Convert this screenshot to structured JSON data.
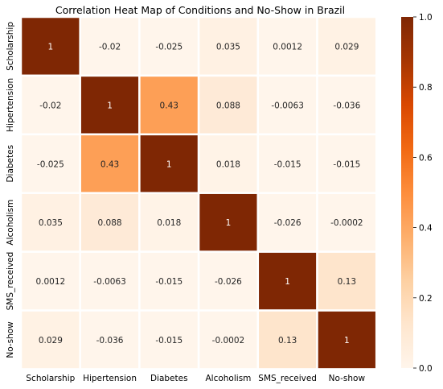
{
  "chart_data": {
    "type": "heatmap",
    "title": "Correlation Heat Map of Conditions and No-Show in Brazil",
    "x_categories": [
      "Scholarship",
      "Hipertension",
      "Diabetes",
      "Alcoholism",
      "SMS_received",
      "No-show"
    ],
    "y_categories": [
      "Scholarship",
      "Hipertension",
      "Diabetes",
      "Alcoholism",
      "SMS_received",
      "No-show"
    ],
    "matrix": [
      [
        1,
        -0.02,
        -0.025,
        0.035,
        0.0012,
        0.029
      ],
      [
        -0.02,
        1,
        0.43,
        0.088,
        -0.0063,
        -0.036
      ],
      [
        -0.025,
        0.43,
        1,
        0.018,
        -0.015,
        -0.015
      ],
      [
        0.035,
        0.088,
        0.018,
        1,
        -0.026,
        -0.0002
      ],
      [
        0.0012,
        -0.0063,
        -0.015,
        -0.026,
        1,
        0.13
      ],
      [
        0.029,
        -0.036,
        -0.015,
        -0.0002,
        0.13,
        1
      ]
    ],
    "labels": [
      [
        "1",
        "-0.02",
        "-0.025",
        "0.035",
        "0.0012",
        "0.029"
      ],
      [
        "-0.02",
        "1",
        "0.43",
        "0.088",
        "-0.0063",
        "-0.036"
      ],
      [
        "-0.025",
        "0.43",
        "1",
        "0.018",
        "-0.015",
        "-0.015"
      ],
      [
        "0.035",
        "0.088",
        "0.018",
        "1",
        "-0.026",
        "-0.0002"
      ],
      [
        "0.0012",
        "-0.0063",
        "-0.015",
        "-0.026",
        "1",
        "0.13"
      ],
      [
        "0.029",
        "-0.036",
        "-0.015",
        "-0.0002",
        "0.13",
        "1"
      ]
    ],
    "colormap": "Oranges",
    "vmin": 0,
    "vmax": 1,
    "colorbar_ticks": [
      0.0,
      0.2,
      0.4,
      0.6,
      0.8,
      1.0
    ],
    "colorbar_tick_labels": [
      "0.0",
      "0.2",
      "0.4",
      "0.6",
      "0.8",
      "1.0"
    ],
    "cell_border_color": "#ffffff"
  }
}
